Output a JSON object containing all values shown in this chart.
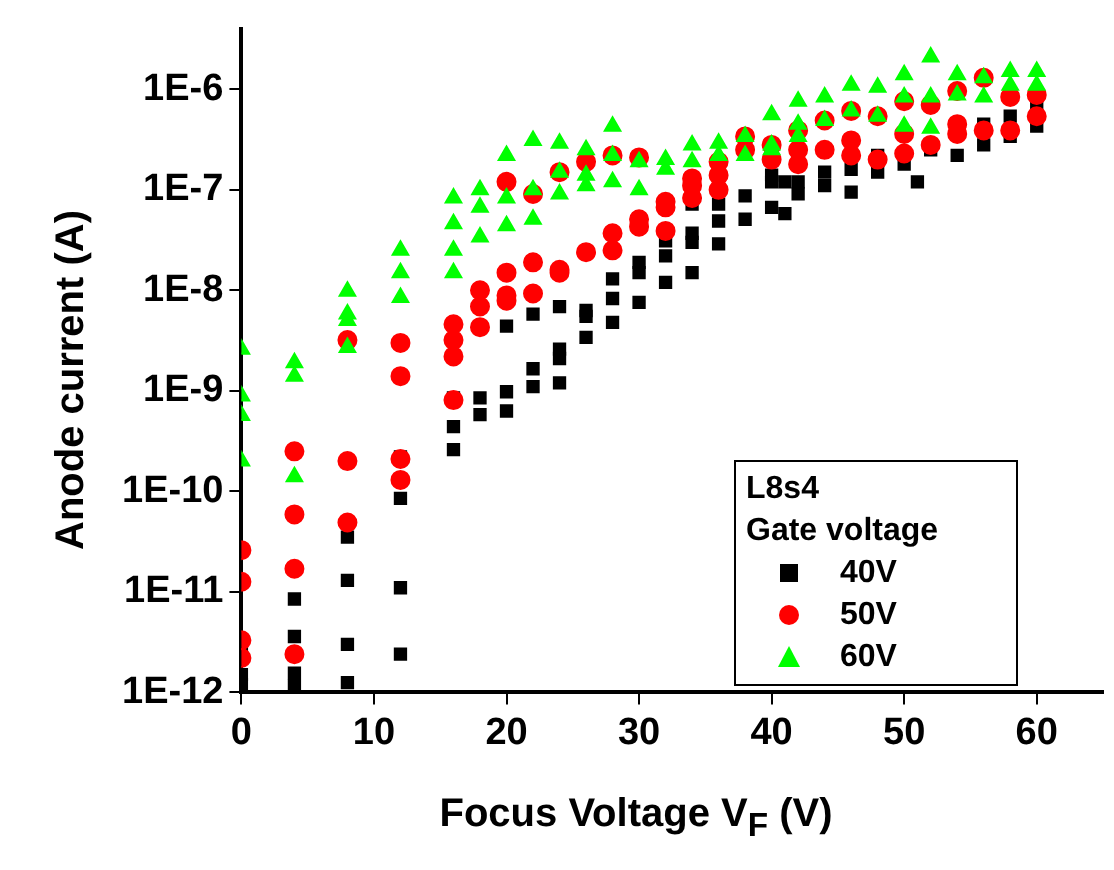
{
  "chart_data": {
    "type": "scatter",
    "xlabel": "Focus Voltage V$_{F}$ (V)",
    "ylabel": "Anode current (A)",
    "legend_title": "L8s4\nGate voltage",
    "legend": "bottom right",
    "log": "y",
    "xlim": [
      0,
      65
    ],
    "xticks": [
      0,
      10,
      20,
      30,
      40,
      50,
      60
    ],
    "ylim": [
      1e-12,
      4e-06
    ],
    "yticks": [
      {
        "value": 1e-12,
        "label": "1E-12"
      },
      {
        "value": 1e-11,
        "label": "1E-11"
      },
      {
        "value": 1e-10,
        "label": "1E-10"
      },
      {
        "value": 1e-09,
        "label": "1E-9"
      },
      {
        "value": 1e-08,
        "label": "1E-8"
      },
      {
        "value": 1e-07,
        "label": "1E-7"
      },
      {
        "value": 1e-06,
        "label": "1E-6"
      }
    ],
    "series": [
      {
        "name": "40V",
        "color": "#000000",
        "marker": "square",
        "x": [
          0,
          0,
          0,
          4,
          4,
          4,
          4,
          8,
          8,
          8,
          8,
          12,
          12,
          12,
          12,
          16,
          16,
          16,
          18,
          18,
          20,
          20,
          20,
          22,
          22,
          22,
          24,
          24,
          24,
          24,
          26,
          26,
          26,
          28,
          28,
          28,
          30,
          30,
          30,
          32,
          32,
          32,
          34,
          34,
          34,
          34,
          36,
          36,
          36,
          38,
          38,
          40,
          40,
          40,
          41,
          41,
          42,
          42,
          44,
          44,
          46,
          46,
          48,
          48,
          50,
          51,
          52,
          54,
          56,
          56,
          58,
          58,
          60,
          60
        ],
        "values": [
          2.6e-12,
          1.5e-12,
          1.2e-12,
          8.5e-12,
          3.6e-12,
          1.55e-12,
          1.15e-12,
          3.5e-11,
          1.3e-11,
          3e-12,
          1.25e-12,
          2.2e-10,
          8.5e-11,
          1.1e-11,
          2.4e-12,
          8.5e-10,
          4.4e-10,
          2.6e-10,
          8.5e-10,
          5.8e-10,
          4.4e-09,
          9.8e-10,
          6.3e-10,
          5.8e-09,
          1.66e-09,
          1.1e-09,
          6.9e-09,
          2.6e-09,
          2.1e-09,
          1.2e-09,
          6.3e-09,
          5.5e-09,
          3.4e-09,
          1.3e-08,
          8.3e-09,
          4.8e-09,
          1.9e-08,
          1.5e-08,
          7.6e-09,
          3.1e-08,
          2.2e-08,
          1.2e-08,
          7.2e-08,
          3.7e-08,
          3e-08,
          1.5e-08,
          7.2e-08,
          4.9e-08,
          2.9e-08,
          8.7e-08,
          5.1e-08,
          1.4e-07,
          1.2e-07,
          6.7e-08,
          1.2e-07,
          5.8e-08,
          1.2e-07,
          9.1e-08,
          1.5e-07,
          1.1e-07,
          1.6e-07,
          9.5e-08,
          2.2e-07,
          1.5e-07,
          1.8e-07,
          1.2e-07,
          2.5e-07,
          2.2e-07,
          4.5e-07,
          2.8e-07,
          5.4e-07,
          3.4e-07,
          7e-07,
          4.3e-07
        ]
      },
      {
        "name": "50V",
        "color": "#ff0000",
        "marker": "circle",
        "x": [
          0,
          0,
          0,
          0,
          4,
          4,
          4,
          4,
          8,
          8,
          8,
          12,
          12,
          12,
          12,
          16,
          16,
          16,
          16,
          18,
          18,
          18,
          20,
          20,
          20,
          20,
          22,
          22,
          22,
          24,
          24,
          24,
          26,
          26,
          28,
          28,
          28,
          30,
          30,
          30,
          32,
          32,
          32,
          34,
          34,
          34,
          36,
          36,
          36,
          38,
          38,
          40,
          40,
          42,
          42,
          42,
          44,
          44,
          46,
          46,
          46,
          48,
          48,
          50,
          50,
          50,
          52,
          52,
          54,
          54,
          54,
          56,
          56,
          58,
          58,
          60,
          60
        ],
        "values": [
          2.6e-11,
          1.26e-11,
          3.3e-12,
          2.2e-12,
          2.5e-10,
          5.9e-11,
          1.7e-11,
          2.4e-12,
          3.2e-09,
          2e-10,
          4.9e-11,
          3e-09,
          1.4e-09,
          2.1e-10,
          1.3e-10,
          4.6e-09,
          3.2e-09,
          2.2e-09,
          8.1e-10,
          1e-08,
          6.9e-09,
          4.3e-09,
          1.2e-07,
          1.5e-08,
          8.9e-09,
          7.9e-09,
          9.1e-08,
          1.9e-08,
          9.3e-09,
          1.5e-07,
          1.6e-08,
          1.5e-08,
          1.9e-07,
          2.4e-08,
          2.2e-07,
          3.7e-08,
          2.5e-08,
          2.1e-07,
          5.1e-08,
          4.3e-08,
          7.6e-08,
          6.7e-08,
          3.9e-08,
          1.3e-07,
          1.1e-07,
          8.3e-08,
          1.9e-07,
          1.4e-07,
          1e-07,
          3.4e-07,
          2.5e-07,
          2.8e-07,
          2e-07,
          3.9e-07,
          2.5e-07,
          1.8e-07,
          4.9e-07,
          2.5e-07,
          6.1e-07,
          3.1e-07,
          2.2e-07,
          5.4e-07,
          2e-07,
          7.6e-07,
          3.6e-07,
          2.3e-07,
          7e-07,
          2.8e-07,
          9.6e-07,
          4.5e-07,
          3.6e-07,
          1.3e-06,
          3.9e-07,
          8.4e-07,
          3.9e-07,
          8.8e-07,
          5.4e-07
        ]
      },
      {
        "name": "60V",
        "color": "#00ff00",
        "marker": "triangle",
        "x": [
          0,
          0,
          0,
          0,
          4,
          4,
          4,
          8,
          8,
          8,
          8,
          12,
          12,
          12,
          16,
          16,
          16,
          16,
          18,
          18,
          18,
          20,
          20,
          20,
          22,
          22,
          22,
          24,
          24,
          24,
          26,
          26,
          26,
          28,
          28,
          28,
          30,
          30,
          32,
          32,
          34,
          34,
          36,
          36,
          38,
          38,
          40,
          40,
          40,
          42,
          42,
          42,
          44,
          44,
          46,
          46,
          48,
          48,
          50,
          50,
          50,
          52,
          52,
          52,
          54,
          54,
          56,
          56,
          58,
          58,
          60,
          60
        ],
        "values": [
          2.6e-09,
          8.9e-10,
          5.7e-10,
          2e-10,
          1.9e-09,
          1.4e-09,
          1.4e-10,
          9.8e-09,
          5.8e-09,
          5e-09,
          2.7e-09,
          2.5e-08,
          1.5e-08,
          8.5e-09,
          8.3e-08,
          4.6e-08,
          2.5e-08,
          1.5e-08,
          1e-07,
          6.7e-08,
          3.4e-08,
          2.2e-07,
          8.3e-08,
          4.4e-08,
          3.1e-07,
          1e-07,
          5.1e-08,
          2.9e-07,
          1.5e-07,
          9.1e-08,
          2.5e-07,
          1.4e-07,
          1.1e-07,
          4.3e-07,
          2.2e-07,
          1.2e-07,
          1.9e-07,
          1e-07,
          2e-07,
          1.6e-07,
          2.8e-07,
          1.9e-07,
          2.9e-07,
          2.2e-07,
          3.4e-07,
          2.2e-07,
          5.6e-07,
          2.8e-07,
          2.5e-07,
          7.6e-07,
          4.5e-07,
          3.4e-07,
          8.4e-07,
          4.9e-07,
          1.1e-06,
          6.1e-07,
          1.05e-06,
          5.4e-07,
          1.4e-06,
          8.4e-07,
          4.3e-07,
          2.1e-06,
          8.4e-07,
          4.1e-07,
          1.4e-06,
          8.8e-07,
          1.3e-06,
          8.4e-07,
          1.5e-06,
          1.1e-06,
          1.5e-06,
          1.1e-06
        ]
      }
    ]
  }
}
